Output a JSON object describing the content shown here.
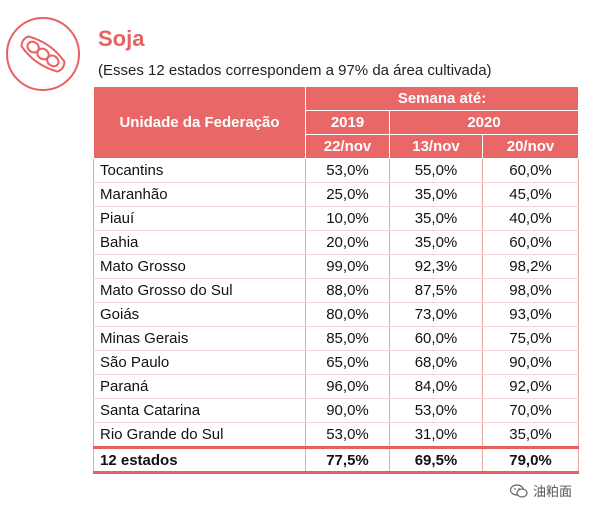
{
  "title": "Soja",
  "subtitle": "(Esses 12 estados correspondem a 97% da área cultivada)",
  "header": {
    "uf_label": "Unidade da Federação",
    "week_label": "Semana até:",
    "year_2019": "2019",
    "year_2020": "2020",
    "col_2019": "22/nov",
    "col_2020_a": "13/nov",
    "col_2020_b": "20/nov"
  },
  "rows": [
    {
      "uf": "Tocantins",
      "v1": "53,0%",
      "v2": "55,0%",
      "v3": "60,0%"
    },
    {
      "uf": "Maranhão",
      "v1": "25,0%",
      "v2": "35,0%",
      "v3": "45,0%"
    },
    {
      "uf": "Piauí",
      "v1": "10,0%",
      "v2": "35,0%",
      "v3": "40,0%"
    },
    {
      "uf": "Bahia",
      "v1": "20,0%",
      "v2": "35,0%",
      "v3": "60,0%"
    },
    {
      "uf": "Mato Grosso",
      "v1": "99,0%",
      "v2": "92,3%",
      "v3": "98,2%"
    },
    {
      "uf": "Mato Grosso do Sul",
      "v1": "88,0%",
      "v2": "87,5%",
      "v3": "98,0%"
    },
    {
      "uf": "Goiás",
      "v1": "80,0%",
      "v2": "73,0%",
      "v3": "93,0%"
    },
    {
      "uf": "Minas Gerais",
      "v1": "85,0%",
      "v2": "60,0%",
      "v3": "75,0%"
    },
    {
      "uf": "São Paulo",
      "v1": "65,0%",
      "v2": "68,0%",
      "v3": "90,0%"
    },
    {
      "uf": "Paraná",
      "v1": "96,0%",
      "v2": "84,0%",
      "v3": "92,0%"
    },
    {
      "uf": "Santa Catarina",
      "v1": "90,0%",
      "v2": "53,0%",
      "v3": "70,0%"
    },
    {
      "uf": "Rio Grande do Sul",
      "v1": "53,0%",
      "v2": "31,0%",
      "v3": "35,0%"
    }
  ],
  "total": {
    "uf": "12 estados",
    "v1": "77,5%",
    "v2": "69,5%",
    "v3": "79,0%"
  },
  "watermark": "油粕面",
  "colors": {
    "accent": "#e8605f",
    "header_bg": "#ea6767"
  },
  "icons": {
    "logo": "soybean-pod-icon",
    "watermark": "wechat-icon"
  }
}
